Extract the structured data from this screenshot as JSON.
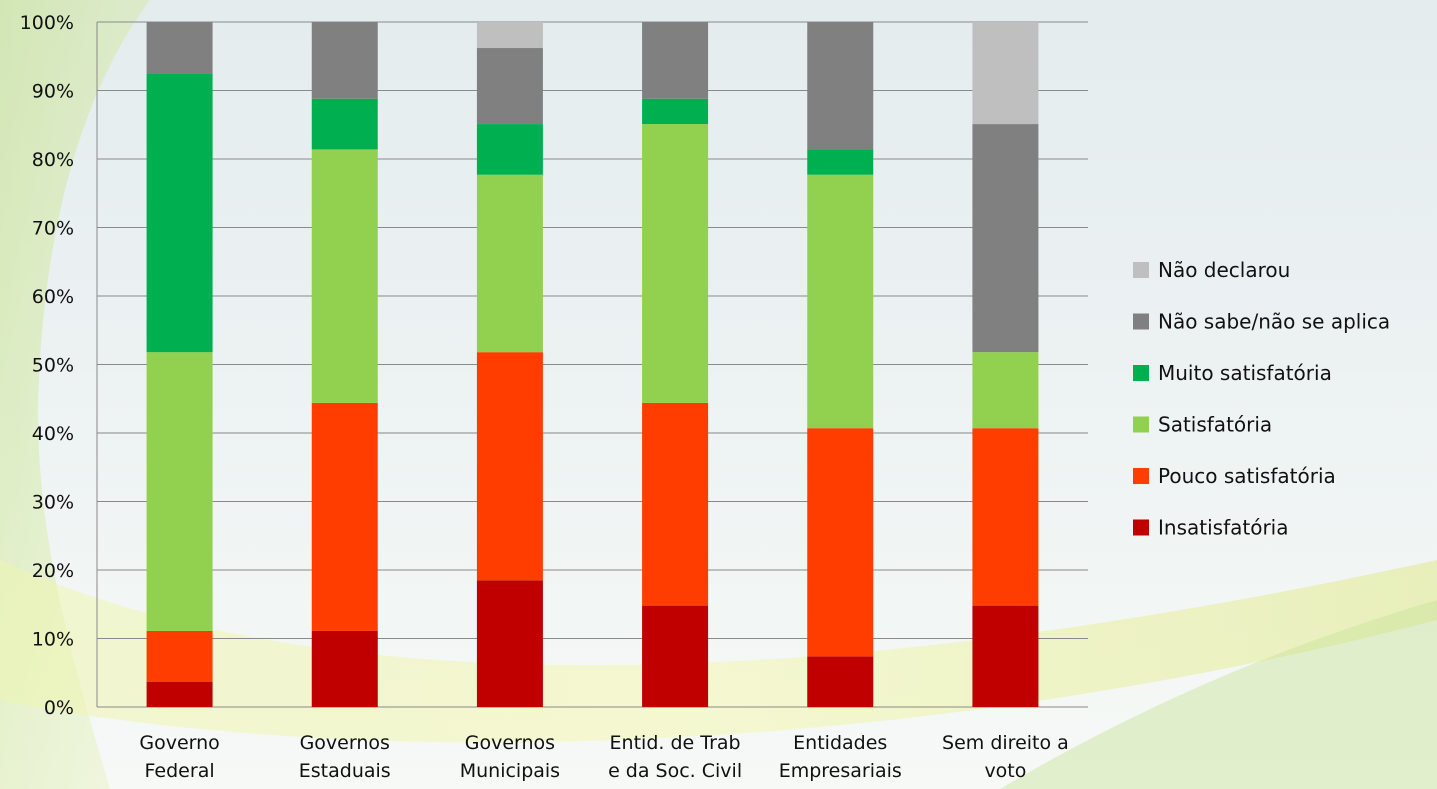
{
  "chart_data": {
    "type": "bar",
    "stacked": true,
    "percent": true,
    "categories": [
      [
        "Governo",
        "Federal"
      ],
      [
        "Governos",
        "Estaduais"
      ],
      [
        "Governos",
        "Municipais"
      ],
      [
        "Entid. de Trab",
        "e da Soc. Civil"
      ],
      [
        "Entidades",
        "Empresariais"
      ],
      [
        "Sem direito a",
        "voto"
      ]
    ],
    "series": [
      {
        "name": "Insatisfatória",
        "color": "#c00000",
        "values": [
          3.7,
          11.1,
          18.5,
          14.8,
          7.4,
          14.8
        ]
      },
      {
        "name": "Pouco satisfatória",
        "color": "#ff3d00",
        "values": [
          7.4,
          33.3,
          33.3,
          29.6,
          33.3,
          25.9
        ]
      },
      {
        "name": "Satisfatória",
        "color": "#92d050",
        "values": [
          40.7,
          37.0,
          25.9,
          40.7,
          37.0,
          11.1
        ]
      },
      {
        "name": "Muito satisfatória",
        "color": "#00b050",
        "values": [
          40.7,
          7.4,
          7.4,
          3.7,
          3.7,
          0
        ]
      },
      {
        "name": "Não sabe/não se aplica",
        "color": "#808080",
        "values": [
          7.5,
          11.2,
          11.1,
          11.2,
          18.6,
          33.3
        ]
      },
      {
        "name": "Não declarou",
        "color": "#bfbfbf",
        "values": [
          0,
          0,
          3.8,
          0,
          0,
          14.9
        ]
      }
    ],
    "yticks": [
      "0%",
      "10%",
      "20%",
      "30%",
      "40%",
      "50%",
      "60%",
      "70%",
      "80%",
      "90%",
      "100%"
    ],
    "ylim": [
      0,
      100
    ],
    "grid": true,
    "legend_position": "right",
    "legend_order": [
      "Não declarou",
      "Não sabe/não se aplica",
      "Muito satisfatória",
      "Satisfatória",
      "Pouco satisfatória",
      "Insatisfatória"
    ]
  }
}
